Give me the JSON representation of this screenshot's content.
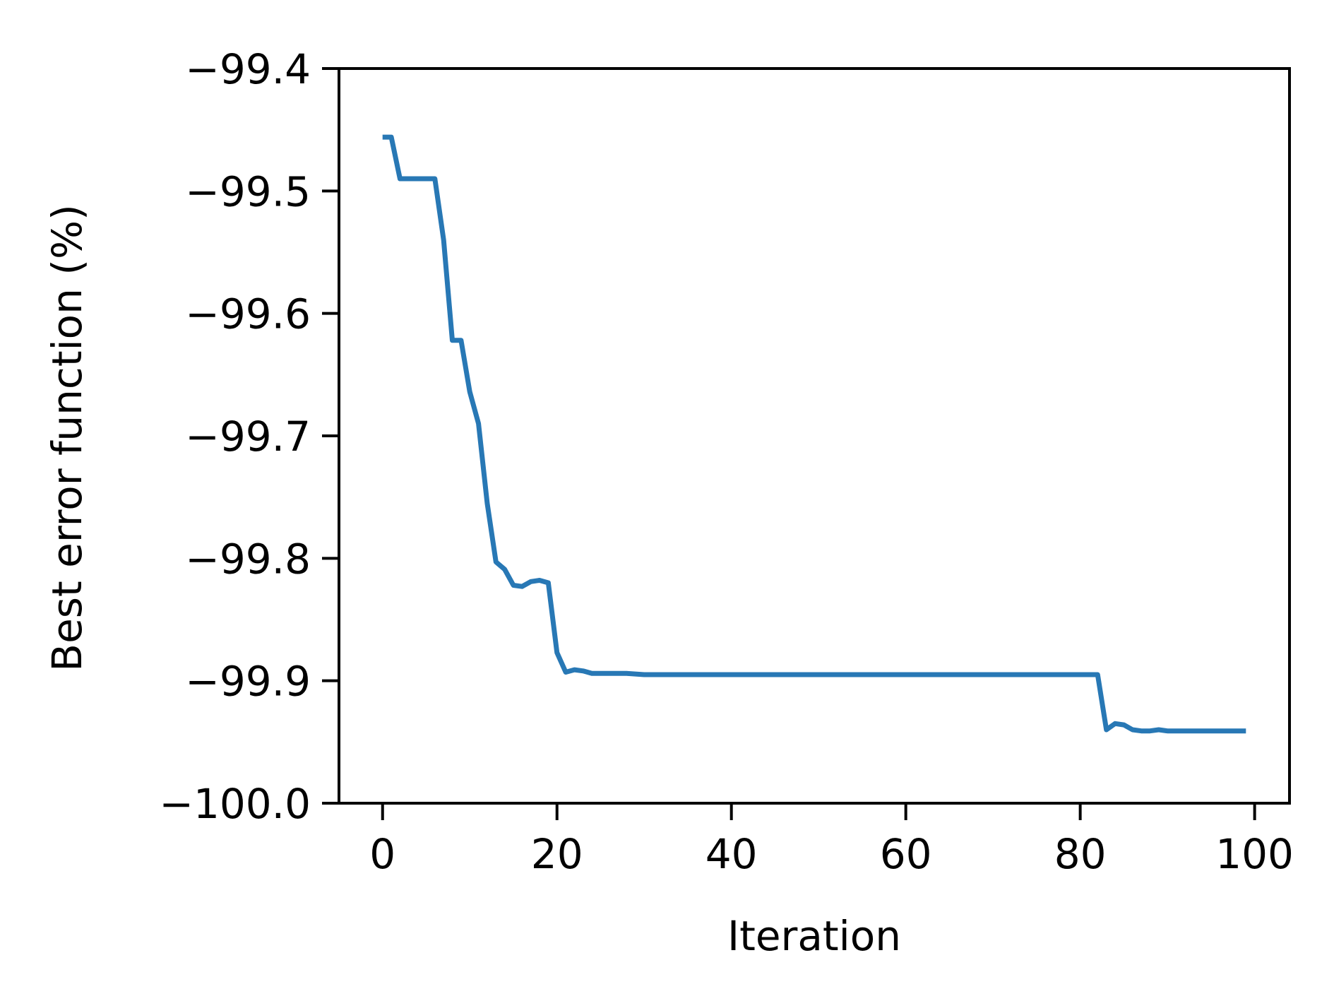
{
  "chart_data": {
    "type": "line",
    "title": "",
    "xlabel": "Iteration",
    "ylabel": "Best error function (%)",
    "xlim": [
      -5,
      104
    ],
    "ylim": [
      -100.0,
      -99.4
    ],
    "xticks": [
      0,
      20,
      40,
      60,
      80,
      100
    ],
    "yticks": [
      -100.0,
      -99.9,
      -99.8,
      -99.7,
      -99.6,
      -99.5,
      -99.4
    ],
    "xtick_labels": [
      "0",
      "20",
      "40",
      "60",
      "80",
      "100"
    ],
    "ytick_labels": [
      "−100.0",
      "−99.9",
      "−99.8",
      "−99.7",
      "−99.6",
      "−99.5",
      "−99.4"
    ],
    "grid": false,
    "colors": {
      "line": "#2878b5",
      "axes": "#000000",
      "background": "#ffffff"
    },
    "series": [
      {
        "x": [
          0,
          1,
          2,
          3,
          4,
          5,
          6,
          7,
          8,
          9,
          10,
          11,
          12,
          13,
          14,
          15,
          16,
          17,
          18,
          19,
          20,
          21,
          22,
          23,
          24,
          25,
          26,
          27,
          28,
          30,
          32,
          40,
          50,
          60,
          70,
          80,
          82,
          83,
          84,
          85,
          86,
          87,
          88,
          89,
          90,
          91,
          92,
          95,
          99
        ],
        "y": [
          -99.456,
          -99.456,
          -99.49,
          -99.49,
          -99.49,
          -99.49,
          -99.49,
          -99.54,
          -99.622,
          -99.622,
          -99.664,
          -99.69,
          -99.755,
          -99.803,
          -99.809,
          -99.822,
          -99.823,
          -99.819,
          -99.818,
          -99.82,
          -99.877,
          -99.893,
          -99.891,
          -99.892,
          -99.894,
          -99.894,
          -99.894,
          -99.894,
          -99.894,
          -99.895,
          -99.895,
          -99.895,
          -99.895,
          -99.895,
          -99.895,
          -99.895,
          -99.895,
          -99.94,
          -99.935,
          -99.936,
          -99.94,
          -99.941,
          -99.941,
          -99.94,
          -99.941,
          -99.941,
          -99.941,
          -99.941,
          -99.941
        ]
      }
    ]
  }
}
